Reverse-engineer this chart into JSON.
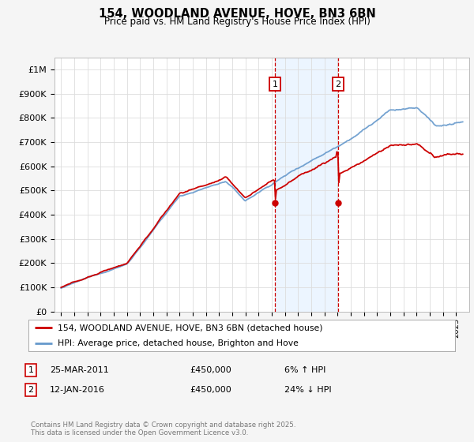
{
  "title": "154, WOODLAND AVENUE, HOVE, BN3 6BN",
  "subtitle": "Price paid vs. HM Land Registry's House Price Index (HPI)",
  "ylim": [
    0,
    1050000
  ],
  "yticks": [
    0,
    100000,
    200000,
    300000,
    400000,
    500000,
    600000,
    700000,
    800000,
    900000,
    1000000
  ],
  "ytick_labels": [
    "£0",
    "£100K",
    "£200K",
    "£300K",
    "£400K",
    "£500K",
    "£600K",
    "£700K",
    "£800K",
    "£900K",
    "£1M"
  ],
  "sale1_date": 2011.23,
  "sale1_price": 450000,
  "sale2_date": 2016.04,
  "sale2_price": 450000,
  "red_color": "#cc0000",
  "blue_color": "#6699cc",
  "blue_fill": "#ddeeff",
  "legend1": "154, WOODLAND AVENUE, HOVE, BN3 6BN (detached house)",
  "legend2": "HPI: Average price, detached house, Brighton and Hove",
  "sale1_text": "25-MAR-2011",
  "sale1_pct": "6% ↑ HPI",
  "sale2_text": "12-JAN-2016",
  "sale2_pct": "24% ↓ HPI",
  "footer": "Contains HM Land Registry data © Crown copyright and database right 2025.\nThis data is licensed under the Open Government Licence v3.0.",
  "bg_color": "#f5f5f5",
  "plot_bg": "#ffffff",
  "grid_color": "#dddddd"
}
